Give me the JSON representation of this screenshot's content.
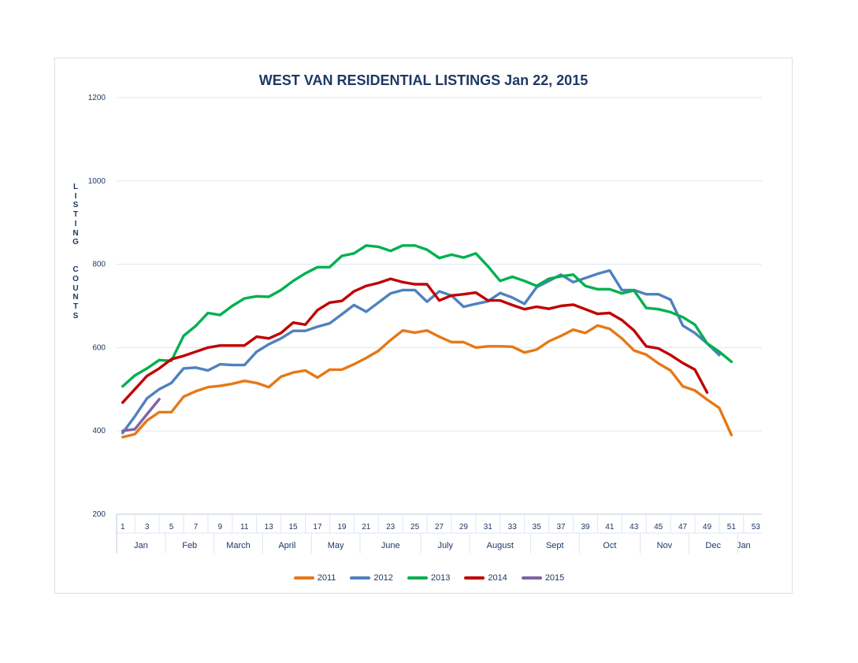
{
  "chart_data": {
    "type": "line",
    "title": "WEST VAN RESIDENTIAL LISTINGS Jan 22, 2015",
    "ylabel": "LISTING  COUNTS",
    "xlabel": "",
    "ylim": [
      200,
      1200
    ],
    "yticks": [
      200,
      400,
      600,
      800,
      1000,
      1200
    ],
    "xlim": [
      1,
      53
    ],
    "xticks": [
      "1",
      "3",
      "5",
      "7",
      "9",
      "11",
      "13",
      "15",
      "17",
      "19",
      "21",
      "23",
      "25",
      "27",
      "29",
      "31",
      "33",
      "35",
      "37",
      "39",
      "41",
      "43",
      "45",
      "47",
      "49",
      "51",
      "53"
    ],
    "months": [
      {
        "label": "Jan",
        "from": 1,
        "to": 5
      },
      {
        "label": "Feb",
        "from": 5,
        "to": 9
      },
      {
        "label": "March",
        "from": 9,
        "to": 13
      },
      {
        "label": "April",
        "from": 13,
        "to": 17
      },
      {
        "label": "May",
        "from": 17,
        "to": 21
      },
      {
        "label": "June",
        "from": 21,
        "to": 26
      },
      {
        "label": "July",
        "from": 26,
        "to": 30
      },
      {
        "label": "August",
        "from": 30,
        "to": 35
      },
      {
        "label": "Sept",
        "from": 35,
        "to": 39
      },
      {
        "label": "Oct",
        "from": 39,
        "to": 44
      },
      {
        "label": "Nov",
        "from": 44,
        "to": 48
      },
      {
        "label": "Dec",
        "from": 48,
        "to": 52
      },
      {
        "label": "Jan",
        "from": 52,
        "to": 53
      }
    ],
    "grid": true,
    "legend_position": "bottom",
    "series": [
      {
        "name": "2011",
        "color": "#e67817",
        "values": [
          385,
          392,
          425,
          445,
          445,
          482,
          495,
          505,
          508,
          513,
          520,
          515,
          505,
          530,
          540,
          545,
          528,
          547,
          547,
          560,
          575,
          592,
          618,
          641,
          636,
          641,
          626,
          613,
          613,
          600,
          603,
          603,
          602,
          588,
          595,
          615,
          628,
          643,
          635,
          653,
          645,
          622,
          593,
          583,
          562,
          545,
          507,
          497,
          475,
          455,
          390
        ]
      },
      {
        "name": "2012",
        "color": "#4f81bd",
        "values": [
          395,
          435,
          478,
          500,
          515,
          550,
          552,
          545,
          560,
          558,
          558,
          590,
          608,
          622,
          640,
          640,
          650,
          658,
          680,
          702,
          686,
          708,
          730,
          738,
          738,
          710,
          735,
          725,
          698,
          705,
          711,
          731,
          720,
          705,
          745,
          760,
          775,
          757,
          767,
          777,
          785,
          738,
          738,
          728,
          728,
          715,
          653,
          635,
          610,
          582
        ]
      },
      {
        "name": "2013",
        "color": "#00b050",
        "values": [
          507,
          533,
          550,
          570,
          568,
          628,
          652,
          683,
          678,
          700,
          718,
          723,
          722,
          738,
          760,
          778,
          793,
          793,
          820,
          826,
          845,
          842,
          832,
          845,
          845,
          835,
          815,
          823,
          816,
          826,
          795,
          760,
          770,
          760,
          748,
          765,
          771,
          775,
          748,
          740,
          740,
          730,
          737,
          695,
          692,
          685,
          673,
          655,
          610,
          590,
          566
        ]
      },
      {
        "name": "2014",
        "color": "#c00000",
        "values": [
          468,
          500,
          532,
          550,
          572,
          580,
          590,
          600,
          605,
          605,
          605,
          626,
          622,
          635,
          660,
          655,
          690,
          708,
          712,
          735,
          748,
          755,
          765,
          757,
          752,
          752,
          713,
          725,
          728,
          732,
          713,
          713,
          702,
          692,
          698,
          693,
          700,
          703,
          692,
          681,
          683,
          666,
          641,
          603,
          598,
          582,
          563,
          547,
          492
        ]
      },
      {
        "name": "2015",
        "color": "#8064a2",
        "values": [
          400,
          404,
          440,
          476
        ]
      }
    ]
  }
}
